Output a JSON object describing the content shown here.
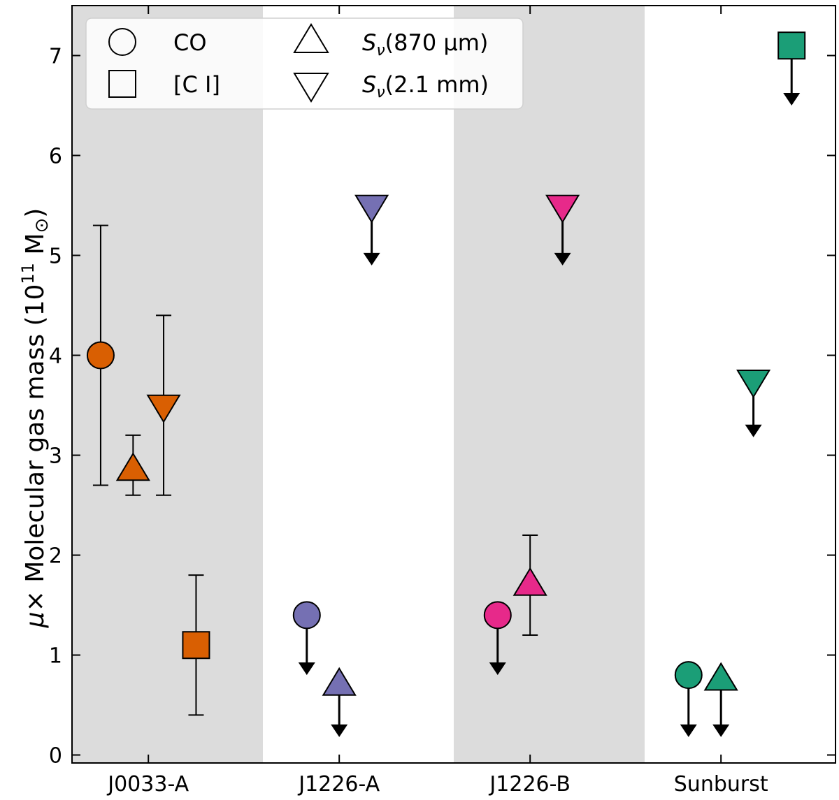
{
  "chart_data": {
    "type": "scatter",
    "ylabel": "μ× Molecular gas mass  (10¹¹ M⊙)",
    "ylabel_parts": {
      "mu": "μ",
      "times": "×",
      "text": " Molecular gas mass  (10",
      "exp": "11",
      "unit": " M",
      "sun": "⊙",
      "close": ")"
    },
    "ylim": [
      -0.08,
      7.5
    ],
    "yticks": [
      0,
      1,
      2,
      3,
      4,
      5,
      6,
      7
    ],
    "xlim": [
      -0.4,
      3.6
    ],
    "categories": [
      "J0033-A",
      "J1226-A",
      "J1226-B",
      "Sunburst"
    ],
    "shaded_bands": [
      [
        -0.4,
        0.6
      ],
      [
        1.6,
        2.6
      ]
    ],
    "colors": {
      "J0033-A": "#d95f02",
      "J1226-A": "#7570b3",
      "J1226-B": "#e7298a",
      "Sunburst": "#1b9e77",
      "band": "#dcdcdc"
    },
    "legend": {
      "location": "top-left",
      "entries": [
        {
          "marker": "circle",
          "label": "CO"
        },
        {
          "marker": "square",
          "label": "[C I]"
        },
        {
          "marker": "triangle-up",
          "label": "Sν(870 μm)",
          "italic": "S",
          "sub": "ν",
          "rest": "(870 μm)"
        },
        {
          "marker": "triangle-down",
          "label": "Sν(2.1 mm)",
          "italic": "S",
          "sub": "ν",
          "rest": "(2.1 mm)"
        }
      ]
    },
    "points": [
      {
        "target": "J0033-A",
        "tracer": "CO",
        "marker": "circle",
        "x": -0.25,
        "y": 4.0,
        "yerr": [
          2.7,
          5.3
        ],
        "upper_limit": false
      },
      {
        "target": "J0033-A",
        "tracer": "Sν(870 μm)",
        "marker": "triangle-up",
        "x": -0.08,
        "y": 2.85,
        "yerr": [
          2.6,
          3.2
        ],
        "upper_limit": false
      },
      {
        "target": "J0033-A",
        "tracer": "Sν(2.1 mm)",
        "marker": "triangle-down",
        "x": 0.08,
        "y": 3.5,
        "yerr": [
          2.6,
          4.4
        ],
        "upper_limit": false
      },
      {
        "target": "J0033-A",
        "tracer": "[C I]",
        "marker": "square",
        "x": 0.25,
        "y": 1.1,
        "yerr": [
          0.4,
          1.8
        ],
        "upper_limit": false
      },
      {
        "target": "J1226-A",
        "tracer": "CO",
        "marker": "circle",
        "x": 0.83,
        "y": 1.4,
        "upper_limit": true,
        "arrow_to": 0.8
      },
      {
        "target": "J1226-A",
        "tracer": "Sν(870 μm)",
        "marker": "triangle-up",
        "x": 1.0,
        "y": 0.7,
        "upper_limit": true,
        "arrow_to": 0.18
      },
      {
        "target": "J1226-A",
        "tracer": "Sν(2.1 mm)",
        "marker": "triangle-down",
        "x": 1.17,
        "y": 5.5,
        "upper_limit": true,
        "arrow_to": 4.9
      },
      {
        "target": "J1226-B",
        "tracer": "CO",
        "marker": "circle",
        "x": 1.83,
        "y": 1.4,
        "upper_limit": true,
        "arrow_to": 0.8
      },
      {
        "target": "J1226-B",
        "tracer": "Sν(870 μm)",
        "marker": "triangle-up",
        "x": 2.0,
        "y": 1.7,
        "yerr": [
          1.2,
          2.2
        ],
        "upper_limit": false
      },
      {
        "target": "J1226-B",
        "tracer": "Sν(2.1 mm)",
        "marker": "triangle-down",
        "x": 2.17,
        "y": 5.5,
        "upper_limit": true,
        "arrow_to": 4.9
      },
      {
        "target": "Sunburst",
        "tracer": "CO",
        "marker": "circle",
        "x": 2.83,
        "y": 0.8,
        "upper_limit": true,
        "arrow_to": 0.18
      },
      {
        "target": "Sunburst",
        "tracer": "Sν(870 μm)",
        "marker": "triangle-up",
        "x": 3.0,
        "y": 0.75,
        "upper_limit": true,
        "arrow_to": 0.18
      },
      {
        "target": "Sunburst",
        "tracer": "Sν(2.1 mm)",
        "marker": "triangle-down",
        "x": 3.17,
        "y": 3.75,
        "upper_limit": true,
        "arrow_to": 3.18
      },
      {
        "target": "Sunburst",
        "tracer": "[C I]",
        "marker": "square",
        "x": 3.37,
        "y": 7.1,
        "upper_limit": true,
        "arrow_to": 6.5
      }
    ]
  }
}
